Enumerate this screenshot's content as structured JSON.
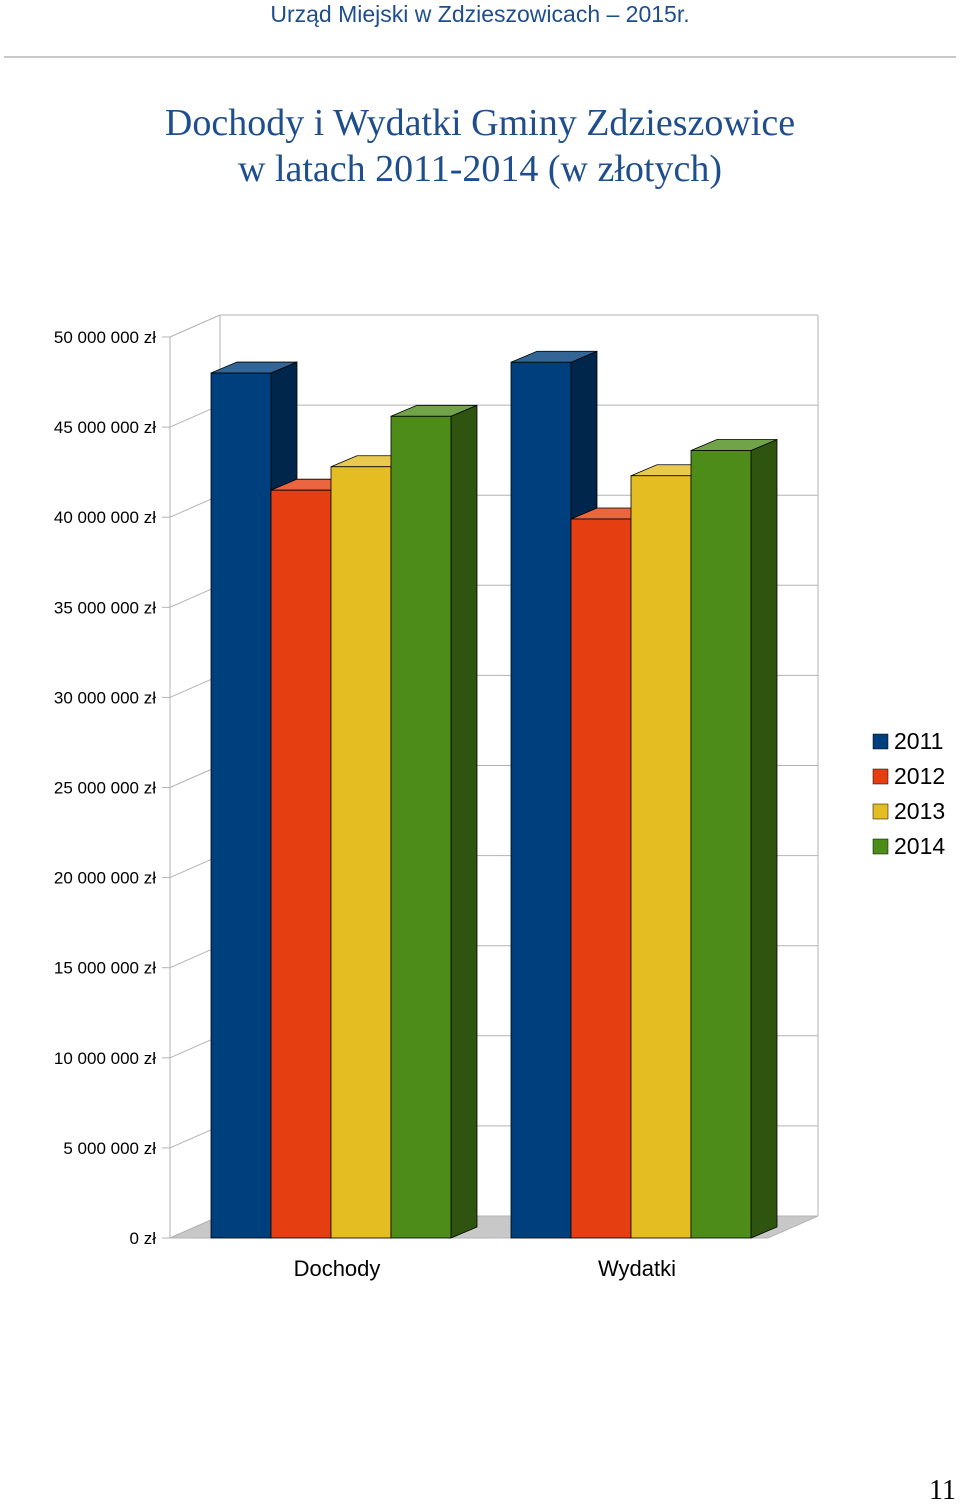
{
  "header": {
    "text": "Urząd Miejski w Zdzieszowicach – 2015r."
  },
  "page_number": "11",
  "colors": {
    "header_text": "#1f4e8c",
    "title_text": "#1f4e8c",
    "series": [
      "#003f7d",
      "#e53e10",
      "#e3bd22",
      "#4e8c1a"
    ]
  },
  "chart_data": {
    "type": "bar",
    "title": "Dochody i Wydatki Gminy Zdzieszowice",
    "subtitle": "w latach 2011-2014 (w złotych)",
    "style": "3d-clustered",
    "categories": [
      "Dochody",
      "Wydatki"
    ],
    "series": [
      {
        "name": "2011",
        "values": [
          48000000,
          48600000
        ]
      },
      {
        "name": "2012",
        "values": [
          41500000,
          39900000
        ]
      },
      {
        "name": "2013",
        "values": [
          42800000,
          42300000
        ]
      },
      {
        "name": "2014",
        "values": [
          45600000,
          43700000
        ]
      }
    ],
    "ylim": [
      0,
      50000000
    ],
    "yticks": [
      0,
      5000000,
      10000000,
      15000000,
      20000000,
      25000000,
      30000000,
      35000000,
      40000000,
      45000000,
      50000000
    ],
    "ytick_labels": [
      "0 zł",
      "5 000 000 zł",
      "10 000 000 zł",
      "15 000 000 zł",
      "20 000 000 zł",
      "25 000 000 zł",
      "30 000 000 zł",
      "35 000 000 zł",
      "40 000 000 zł",
      "45 000 000 zł",
      "50 000 000 zł"
    ],
    "xlabel": "",
    "ylabel": "",
    "grid": true,
    "legend": "right"
  }
}
